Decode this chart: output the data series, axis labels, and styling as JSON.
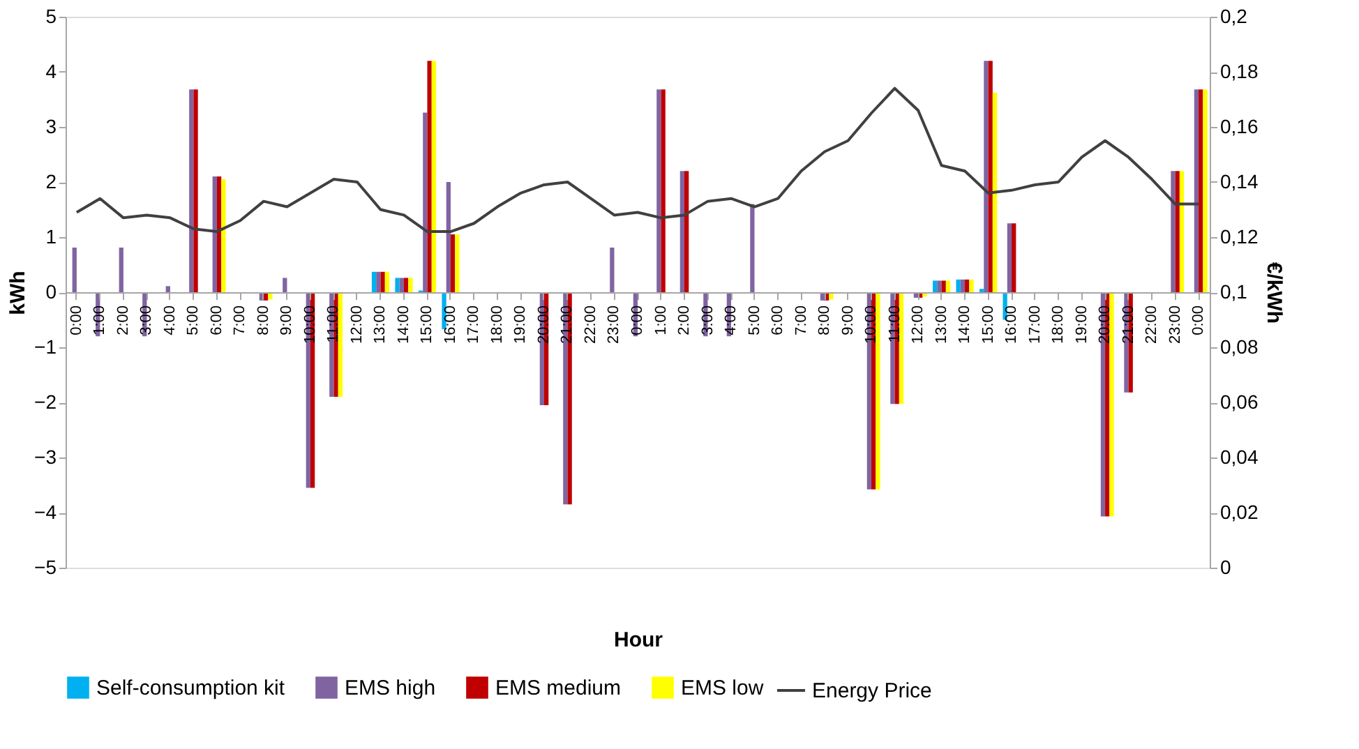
{
  "chart_data": {
    "type": "bar",
    "xlabel": "Hour",
    "ylabel": "kWh",
    "y2label": "€/kWh",
    "categories": [
      "0:00",
      "1:00",
      "2:00",
      "3:00",
      "4:00",
      "5:00",
      "6:00",
      "7:00",
      "8:00",
      "9:00",
      "10:00",
      "11:00",
      "12:00",
      "13:00",
      "14:00",
      "15:00",
      "16:00",
      "17:00",
      "18:00",
      "19:00",
      "20:00",
      "21:00",
      "22:00",
      "23:00",
      "0:00",
      "1:00",
      "2:00",
      "3:00",
      "4:00",
      "5:00",
      "6:00",
      "7:00",
      "8:00",
      "9:00",
      "10:00",
      "11:00",
      "12:00",
      "13:00",
      "14:00",
      "15:00",
      "16:00",
      "17:00",
      "18:00",
      "19:00",
      "20:00",
      "21:00",
      "22:00",
      "23:00",
      "0:00"
    ],
    "series": [
      {
        "name": "Self-consumption kit",
        "color": "#00b0f0",
        "values": [
          0,
          0,
          0,
          0,
          0,
          0,
          0,
          0,
          0,
          0,
          0,
          0,
          0,
          0.37,
          0.26,
          0.03,
          -0.67,
          0,
          0,
          0,
          0,
          0,
          0,
          0,
          0,
          0,
          0,
          0,
          0,
          0,
          0,
          0,
          0,
          0,
          0,
          0,
          0,
          0.21,
          0.23,
          0.06,
          -0.5,
          0,
          0,
          0,
          0,
          0,
          0,
          0,
          0
        ]
      },
      {
        "name": "EMS high",
        "color": "#8064a2",
        "values": [
          0.81,
          -0.8,
          0.81,
          -0.8,
          0.11,
          3.68,
          2.1,
          0,
          -0.15,
          0.26,
          -3.55,
          -1.9,
          0,
          0.37,
          0.26,
          3.26,
          2.0,
          0,
          0,
          0,
          -2.05,
          -3.85,
          0,
          0.81,
          -0.8,
          3.68,
          2.2,
          -0.8,
          -0.8,
          1.6,
          0,
          0,
          -0.15,
          null,
          -3.58,
          -2.03,
          -0.1,
          0.21,
          0.23,
          4.2,
          1.25,
          0,
          0,
          0,
          -4.07,
          -1.82,
          0,
          2.2,
          3.68
        ]
      },
      {
        "name": "EMS medium",
        "color": "#c00000",
        "values": [
          0,
          0,
          0,
          0,
          0,
          3.68,
          2.1,
          0,
          -0.15,
          0,
          -3.55,
          -1.9,
          0,
          0.37,
          0.26,
          4.2,
          1.05,
          0,
          0,
          0,
          -2.05,
          -3.85,
          0,
          0,
          0,
          3.68,
          2.2,
          0,
          0,
          0,
          0,
          0,
          -0.15,
          null,
          -3.58,
          -2.03,
          -0.1,
          0.21,
          0.23,
          4.2,
          1.25,
          0,
          0,
          0,
          -4.07,
          -1.82,
          0,
          2.2,
          3.68
        ]
      },
      {
        "name": "EMS low",
        "color": "#ffff00",
        "values": [
          0,
          0,
          0,
          0,
          0,
          0,
          2.05,
          0,
          -0.13,
          0,
          0,
          -1.9,
          0,
          0.37,
          0.26,
          4.2,
          1.05,
          0,
          0,
          0,
          0,
          0,
          0,
          0,
          0,
          0,
          0,
          0,
          0,
          0,
          0,
          0,
          -0.13,
          null,
          -3.58,
          -2.03,
          -0.08,
          0.21,
          0.23,
          3.62,
          0,
          0,
          0,
          0,
          -4.07,
          0,
          0,
          2.2,
          3.68
        ]
      },
      {
        "name": "Energy Price",
        "type": "line",
        "axis": "y2",
        "color": "#404040",
        "values": [
          0.129,
          0.134,
          0.127,
          0.128,
          0.127,
          0.123,
          0.122,
          0.126,
          0.133,
          0.131,
          0.136,
          0.141,
          0.14,
          0.13,
          0.128,
          0.122,
          0.122,
          0.125,
          0.131,
          0.136,
          0.139,
          0.14,
          0.134,
          0.128,
          0.129,
          0.127,
          0.128,
          0.133,
          0.134,
          0.131,
          0.134,
          0.144,
          0.151,
          0.155,
          0.165,
          0.174,
          0.166,
          0.146,
          0.144,
          0.136,
          0.137,
          0.139,
          0.14,
          0.149,
          0.155,
          0.149,
          0.141,
          0.132,
          0.132
        ]
      }
    ],
    "ylim": [
      -5,
      5
    ],
    "yticks": [
      -5,
      -4,
      -3,
      -2,
      -1,
      0,
      1,
      2,
      3,
      4,
      5
    ],
    "y2lim": [
      0,
      0.2
    ],
    "y2ticks": [
      {
        "value": 0,
        "label": "0"
      },
      {
        "value": 0.02,
        "label": "0,02"
      },
      {
        "value": 0.04,
        "label": "0,04"
      },
      {
        "value": 0.06,
        "label": "0,06"
      },
      {
        "value": 0.08,
        "label": "0,08"
      },
      {
        "value": 0.1,
        "label": "0,1"
      },
      {
        "value": 0.12,
        "label": "0,12"
      },
      {
        "value": 0.14,
        "label": "0,14"
      },
      {
        "value": 0.16,
        "label": "0,16"
      },
      {
        "value": 0.18,
        "label": "0,18"
      },
      {
        "value": 0.2,
        "label": "0,2"
      }
    ],
    "grid": false,
    "legend": "bottom",
    "marker": "none",
    "line_style": "solid"
  }
}
